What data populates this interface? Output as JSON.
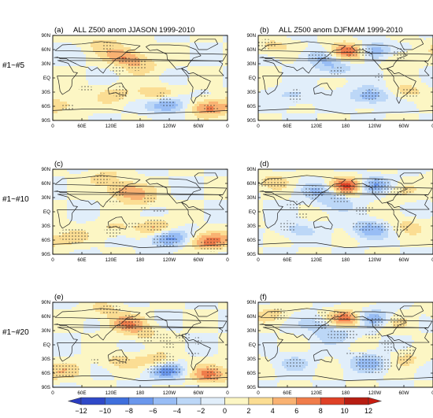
{
  "figure": {
    "row_labels": [
      "#1~#5",
      "#1~#10",
      "#1~#20"
    ],
    "panels": [
      {
        "label": "(a)",
        "title": "ALL Z500 anom JJASON 1999-2010"
      },
      {
        "label": "(b)",
        "title": "ALL Z500 anom DJFMAM 1999-2010"
      },
      {
        "label": "(c)",
        "title": ""
      },
      {
        "label": "(d)",
        "title": ""
      },
      {
        "label": "(e)",
        "title": ""
      },
      {
        "label": "(f)",
        "title": ""
      }
    ],
    "lat_ticks": [
      "90N",
      "60N",
      "30N",
      "EQ",
      "30S",
      "60S",
      "90S"
    ],
    "lon_ticks": [
      "0",
      "60E",
      "120E",
      "180",
      "120W",
      "60W",
      "0"
    ]
  },
  "colorbar": {
    "tick_labels": [
      "−12",
      "−10",
      "−8",
      "−6",
      "−4",
      "−2",
      "0",
      "2",
      "4",
      "6",
      "8",
      "10",
      "12"
    ],
    "levels": [
      -12,
      -10,
      -8,
      -6,
      -4,
      -2,
      0,
      2,
      4,
      6,
      8,
      10,
      12
    ],
    "colors": [
      "#2f49c8",
      "#3f6fdc",
      "#6a97ec",
      "#98bdf5",
      "#bcd7f7",
      "#e1eefa",
      "#fcf6c4",
      "#fbdd93",
      "#f9b272",
      "#f07c4a",
      "#df4126",
      "#b71d12"
    ],
    "under_color": "#2a3cc0",
    "over_color": "#c81c10"
  },
  "chart_data": {
    "type": "heatmap",
    "variable": "ALL Z500 anom",
    "periods": [
      "JJASON 1999-2010",
      "DJFMAM 1999-2010"
    ],
    "rows": [
      "#1~#5",
      "#1~#10",
      "#1~#20"
    ],
    "xlim": [
      0,
      360
    ],
    "ylim": [
      -90,
      90
    ],
    "color_levels": [
      -12,
      -10,
      -8,
      -6,
      -4,
      -2,
      0,
      2,
      4,
      6,
      8,
      10,
      12
    ],
    "stippling": "dots mark significant regions",
    "anomaly_centers": {
      "JJASON": [
        {
          "lon": 150,
          "lat": 45,
          "value": 6
        },
        {
          "lon": 185,
          "lat": 25,
          "value": 3
        },
        {
          "lon": 215,
          "lat": -35,
          "value": 5
        },
        {
          "lon": 235,
          "lat": -55,
          "value": -8
        },
        {
          "lon": 320,
          "lat": -63,
          "value": 7
        },
        {
          "lon": 105,
          "lat": 73,
          "value": 3
        },
        {
          "lon": 30,
          "lat": -55,
          "value": 3
        },
        {
          "lon": 130,
          "lat": -35,
          "value": 3
        }
      ],
      "DJFMAM": [
        {
          "lon": 185,
          "lat": 55,
          "value": 10
        },
        {
          "lon": 235,
          "lat": 55,
          "value": -8
        },
        {
          "lon": 125,
          "lat": 45,
          "value": -4
        },
        {
          "lon": 280,
          "lat": 45,
          "value": 3
        },
        {
          "lon": 160,
          "lat": 22,
          "value": -4
        },
        {
          "lon": 230,
          "lat": -38,
          "value": -6
        },
        {
          "lon": 305,
          "lat": -30,
          "value": 3
        },
        {
          "lon": 75,
          "lat": -38,
          "value": -3
        },
        {
          "lon": 30,
          "lat": 65,
          "value": 3
        }
      ]
    }
  }
}
